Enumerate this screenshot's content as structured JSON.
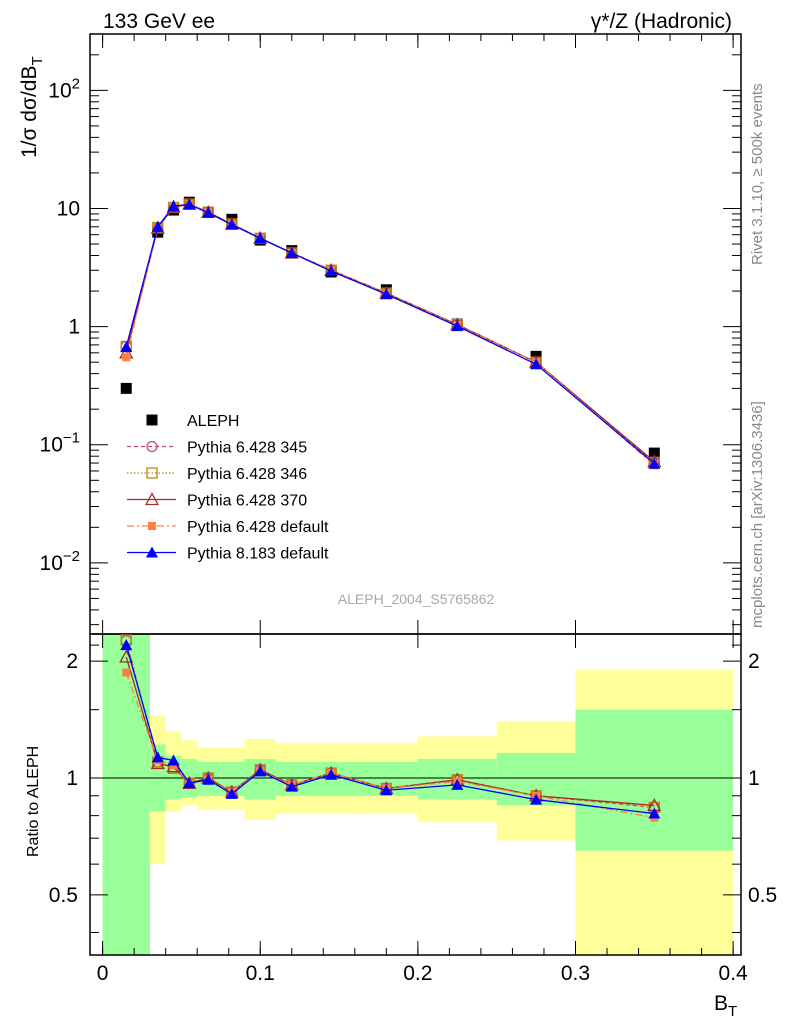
{
  "header": {
    "left": "133 GeV ee",
    "right": "γ*/Z (Hadronic)"
  },
  "side_labels": {
    "rivet": "Rivet 3.1.10, ≥ 500k events",
    "mcplots": "mcplots.cern.ch [arXiv:1306.3436]"
  },
  "watermark": "ALEPH_2004_S5765862",
  "axes": {
    "top_ylabel": "1/σ  dσ/dB",
    "top_ylabel_sub": "T",
    "bottom_ylabel": "Ratio to ALEPH",
    "xlabel": "B",
    "xlabel_sub": "T",
    "top_yticks": [
      {
        "value": 0.01,
        "base": "10",
        "exp": "−2"
      },
      {
        "value": 0.1,
        "base": "10",
        "exp": "−1"
      },
      {
        "value": 1,
        "base": "1",
        "exp": ""
      },
      {
        "value": 10,
        "base": "10",
        "exp": ""
      },
      {
        "value": 100,
        "base": "10",
        "exp": "2"
      }
    ],
    "bottom_yticks": [
      {
        "value": 0.5,
        "label": "0.5"
      },
      {
        "value": 1,
        "label": "1"
      },
      {
        "value": 2,
        "label": "2"
      }
    ],
    "xticks": [
      {
        "value": 0,
        "label": "0"
      },
      {
        "value": 0.1,
        "label": "0.1"
      },
      {
        "value": 0.2,
        "label": "0.2"
      },
      {
        "value": 0.3,
        "label": "0.3"
      },
      {
        "value": 0.4,
        "label": "0.4"
      }
    ]
  },
  "legend": [
    {
      "label": "ALEPH",
      "key": "data"
    },
    {
      "label": "Pythia 6.428 345",
      "key": "p345"
    },
    {
      "label": "Pythia 6.428 346",
      "key": "p346"
    },
    {
      "label": "Pythia 6.428 370",
      "key": "p370"
    },
    {
      "label": "Pythia 6.428 default",
      "key": "p6def"
    },
    {
      "label": "Pythia 8.183 default",
      "key": "p8def"
    }
  ],
  "colors": {
    "data": "#000000",
    "p345": "#c0506a",
    "p346": "#b8860b",
    "p370": "#a52a2a",
    "p6def": "#ff7f3f",
    "p8def": "#0000ff",
    "band_inner": "#99ff99",
    "band_outer": "#ffff99"
  },
  "chart_data": {
    "type": "line",
    "xlim": [
      -0.008,
      0.405
    ],
    "ylim_top": [
      0.0025,
      300
    ],
    "yscale_top": "log",
    "ylim_bottom": [
      0.35,
      2.35
    ],
    "yscale_bottom": "log",
    "x": [
      0.015,
      0.035,
      0.045,
      0.055,
      0.067,
      0.082,
      0.1,
      0.12,
      0.145,
      0.18,
      0.225,
      0.275,
      0.35
    ],
    "data": {
      "name": "ALEPH",
      "values": [
        0.3,
        6.3,
        9.7,
        11.3,
        9.3,
        8.1,
        5.4,
        4.4,
        2.9,
        2.05,
        1.05,
        0.56,
        0.085
      ]
    },
    "bins": [
      {
        "x0": 0.0,
        "x1": 0.03,
        "stat": [
          0.35,
          2.35
        ],
        "tot": [
          0.35,
          2.35
        ]
      },
      {
        "x0": 0.03,
        "x1": 0.04,
        "stat": [
          0.82,
          1.22
        ],
        "tot": [
          0.6,
          1.45
        ]
      },
      {
        "x0": 0.04,
        "x1": 0.05,
        "stat": [
          0.88,
          1.14
        ],
        "tot": [
          0.82,
          1.32
        ]
      },
      {
        "x0": 0.05,
        "x1": 0.06,
        "stat": [
          0.89,
          1.12
        ],
        "tot": [
          0.85,
          1.25
        ]
      },
      {
        "x0": 0.06,
        "x1": 0.075,
        "stat": [
          0.9,
          1.1
        ],
        "tot": [
          0.83,
          1.2
        ]
      },
      {
        "x0": 0.075,
        "x1": 0.09,
        "stat": [
          0.9,
          1.1
        ],
        "tot": [
          0.83,
          1.2
        ]
      },
      {
        "x0": 0.09,
        "x1": 0.11,
        "stat": [
          0.88,
          1.12
        ],
        "tot": [
          0.78,
          1.26
        ]
      },
      {
        "x0": 0.11,
        "x1": 0.13,
        "stat": [
          0.9,
          1.1
        ],
        "tot": [
          0.81,
          1.23
        ]
      },
      {
        "x0": 0.13,
        "x1": 0.16,
        "stat": [
          0.9,
          1.1
        ],
        "tot": [
          0.81,
          1.23
        ]
      },
      {
        "x0": 0.16,
        "x1": 0.2,
        "stat": [
          0.9,
          1.1
        ],
        "tot": [
          0.81,
          1.23
        ]
      },
      {
        "x0": 0.2,
        "x1": 0.25,
        "stat": [
          0.88,
          1.12
        ],
        "tot": [
          0.77,
          1.28
        ]
      },
      {
        "x0": 0.25,
        "x1": 0.3,
        "stat": [
          0.85,
          1.16
        ],
        "tot": [
          0.69,
          1.4
        ]
      },
      {
        "x0": 0.3,
        "x1": 0.4,
        "stat": [
          0.65,
          1.5
        ],
        "tot": [
          0.35,
          1.9
        ]
      }
    ],
    "series": [
      {
        "key": "p345",
        "name": "Pythia 6.428 345",
        "values": [
          0.68,
          6.9,
          10.2,
          10.9,
          9.3,
          7.4,
          5.6,
          4.2,
          3.0,
          1.92,
          1.04,
          0.5,
          0.071
        ],
        "ratio": [
          2.26,
          1.1,
          1.06,
          0.97,
          1.0,
          0.92,
          1.05,
          0.96,
          1.03,
          0.94,
          0.99,
          0.9,
          0.84
        ]
      },
      {
        "key": "p346",
        "name": "Pythia 6.428 346",
        "values": [
          0.68,
          6.9,
          10.2,
          10.9,
          9.3,
          7.4,
          5.6,
          4.2,
          3.0,
          1.92,
          1.04,
          0.5,
          0.071
        ],
        "ratio": [
          2.27,
          1.1,
          1.06,
          0.97,
          1.0,
          0.92,
          1.05,
          0.96,
          1.03,
          0.94,
          0.99,
          0.9,
          0.84
        ]
      },
      {
        "key": "p370",
        "name": "Pythia 6.428 370",
        "values": [
          0.6,
          6.8,
          10.3,
          10.9,
          9.3,
          7.4,
          5.6,
          4.2,
          3.0,
          1.92,
          1.04,
          0.5,
          0.072
        ],
        "ratio": [
          2.05,
          1.09,
          1.07,
          0.97,
          1.0,
          0.92,
          1.05,
          0.96,
          1.03,
          0.94,
          0.99,
          0.9,
          0.85
        ]
      },
      {
        "key": "p6def",
        "name": "Pythia 6.428 default",
        "values": [
          0.55,
          6.9,
          10.4,
          10.9,
          9.3,
          7.4,
          5.6,
          4.2,
          3.0,
          1.92,
          1.03,
          0.5,
          0.067
        ],
        "ratio": [
          1.87,
          1.11,
          1.08,
          0.97,
          0.99,
          0.92,
          1.04,
          0.96,
          1.03,
          0.94,
          0.98,
          0.9,
          0.79
        ]
      },
      {
        "key": "p8def",
        "name": "Pythia 8.183 default",
        "values": [
          0.67,
          7.0,
          10.5,
          10.8,
          9.2,
          7.3,
          5.6,
          4.2,
          2.95,
          1.88,
          1.01,
          0.48,
          0.069
        ],
        "ratio": [
          2.2,
          1.13,
          1.11,
          0.97,
          0.99,
          0.91,
          1.04,
          0.95,
          1.02,
          0.93,
          0.96,
          0.88,
          0.81
        ]
      }
    ]
  }
}
